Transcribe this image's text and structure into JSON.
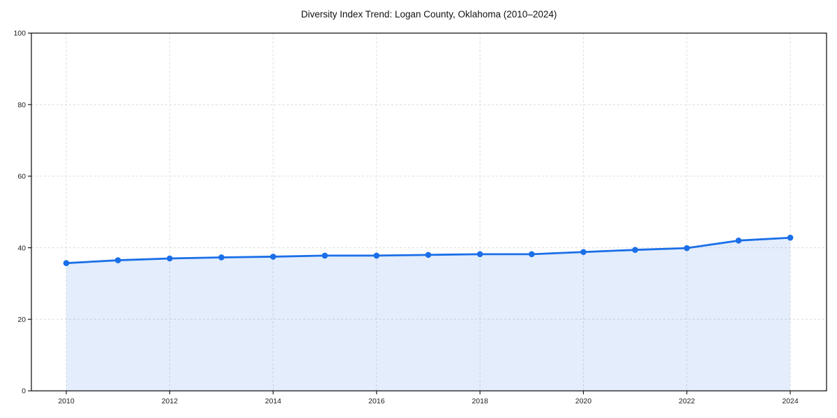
{
  "chart_data": {
    "type": "line",
    "title": "Diversity Index Trend: Logan County, Oklahoma (2010–2024)",
    "x": [
      2010,
      2011,
      2012,
      2013,
      2014,
      2015,
      2016,
      2017,
      2018,
      2019,
      2020,
      2021,
      2022,
      2023,
      2024
    ],
    "series": [
      {
        "name": "Diversity Index",
        "values": [
          35.7,
          36.5,
          37.0,
          37.3,
          37.5,
          37.8,
          37.8,
          38.0,
          38.2,
          38.2,
          38.8,
          39.4,
          39.9,
          42.0,
          42.8
        ]
      }
    ],
    "xticks": [
      2010,
      2012,
      2014,
      2016,
      2018,
      2020,
      2022,
      2024
    ],
    "yticks": [
      0,
      20,
      40,
      60,
      80,
      100
    ],
    "ylim": [
      0,
      100
    ],
    "xlabel": "",
    "ylabel": "",
    "legend": "none",
    "grid": "dashed",
    "area_fill": true,
    "marker": "circle",
    "colors": {
      "line": "#1a6fe8",
      "marker": "#1a6fe8",
      "fill": "rgba(26, 111, 232, 0.12)",
      "grid": "#dcdcdc",
      "axis": "#1a1a1a",
      "tick_text": "#1b1b1b",
      "title_text": "#111111",
      "background": "#ffffff"
    }
  }
}
